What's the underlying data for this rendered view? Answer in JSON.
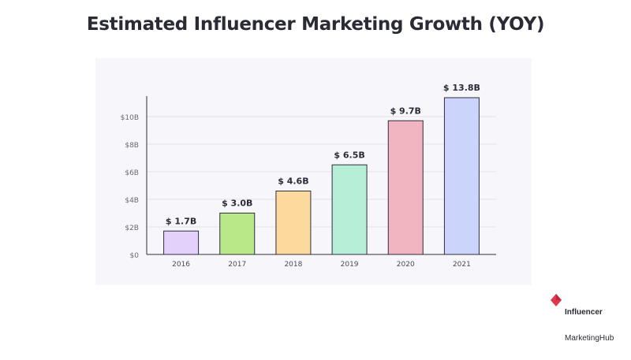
{
  "title": "Estimated Influencer Marketing Growth (YOY)",
  "brand": {
    "line1": "Influencer",
    "line2": "MarketingHub",
    "color": "#e0394f"
  },
  "chart_data": {
    "type": "bar",
    "title": "Estimated Influencer Marketing Growth (YOY)",
    "categories": [
      "2016",
      "2017",
      "2018",
      "2019",
      "2020",
      "2021"
    ],
    "values": [
      1.7,
      3.0,
      4.6,
      6.5,
      9.7,
      13.8
    ],
    "data_labels": [
      "$ 1.7B",
      "$ 3.0B",
      "$ 4.6B",
      "$ 6.5B",
      "$ 9.7B",
      "$ 13.8B"
    ],
    "colors": [
      "#e3d0fb",
      "#b8e887",
      "#fcd99c",
      "#b6eed7",
      "#f1b4c1",
      "#cbd4fa"
    ],
    "yticks": [
      0,
      2,
      4,
      6,
      8,
      10
    ],
    "ytick_labels": [
      "$0",
      "$2B",
      "$4B",
      "$6B",
      "$8B",
      "$10B"
    ],
    "ylim": [
      0,
      10
    ],
    "xlabel": "",
    "ylabel": "",
    "grid": true,
    "legend": "none"
  }
}
